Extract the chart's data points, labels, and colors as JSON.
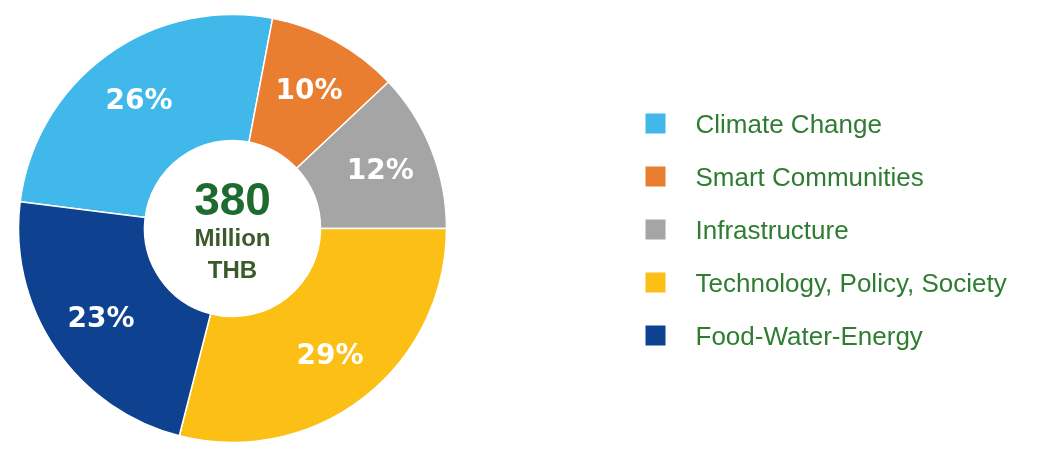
{
  "chart_data": {
    "type": "donut",
    "categories": [
      "Climate Change",
      "Smart Communities",
      "Infrastructure",
      "Technology, Policy, Society",
      "Food-Water-Energy"
    ],
    "values": [
      26,
      10,
      12,
      29,
      23
    ],
    "colors": [
      "#41b8ea",
      "#e97d30",
      "#a5a5a5",
      "#fbbf16",
      "#0e418f"
    ],
    "value_labels": [
      "26%",
      "10%",
      "12%",
      "29%",
      "23%"
    ],
    "annotations": [
      "380",
      "Million THB"
    ],
    "legend": "right"
  }
}
